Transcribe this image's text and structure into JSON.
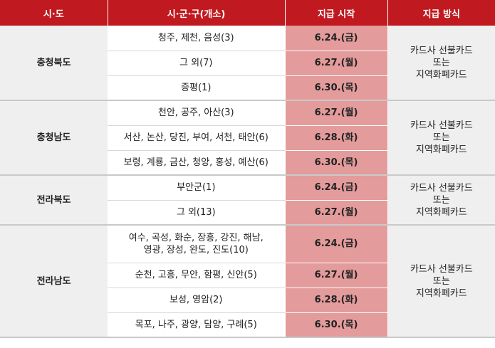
{
  "headers": [
    "시·도",
    "시·군·구(개소)",
    "지급 시작",
    "지급 방식"
  ],
  "method_lines": [
    "카드사 선불카드",
    "또는",
    "지역화폐카드"
  ],
  "groups": [
    {
      "region": "충청북도",
      "rows": [
        {
          "area": [
            "청주, 제천, 음성(3)"
          ],
          "date": "6.24.(금)"
        },
        {
          "area": [
            "그 외(7)"
          ],
          "date": "6.27.(월)"
        },
        {
          "area": [
            "증평(1)"
          ],
          "date": "6.30.(목)"
        }
      ]
    },
    {
      "region": "충청남도",
      "rows": [
        {
          "area": [
            "천안, 공주, 아산(3)"
          ],
          "date": "6.27.(월)"
        },
        {
          "area": [
            "서산, 논산, 당진, 부여, 서천, 태안(6)"
          ],
          "date": "6.28.(화)"
        },
        {
          "area": [
            "보령, 계룡, 금산, 청양, 홍성, 예산(6)"
          ],
          "date": "6.30.(목)"
        }
      ]
    },
    {
      "region": "전라북도",
      "rows": [
        {
          "area": [
            "부안군(1)"
          ],
          "date": "6.24.(금)"
        },
        {
          "area": [
            "그 외(13)"
          ],
          "date": "6.27.(월)"
        }
      ]
    },
    {
      "region": "전라남도",
      "rows": [
        {
          "area": [
            "여수, 곡성, 화순, 장흥, 강진, 해남,",
            "영광, 장성, 완도, 진도(10)"
          ],
          "date": "6.24.(금)"
        },
        {
          "area": [
            "순천, 고흥, 무안, 함평, 신안(5)"
          ],
          "date": "6.27.(월)"
        },
        {
          "area": [
            "보성, 영암(2)"
          ],
          "date": "6.28.(화)"
        },
        {
          "area": [
            "목포, 나주, 광양, 담양, 구례(5)"
          ],
          "date": "6.30.(목)"
        }
      ]
    }
  ]
}
